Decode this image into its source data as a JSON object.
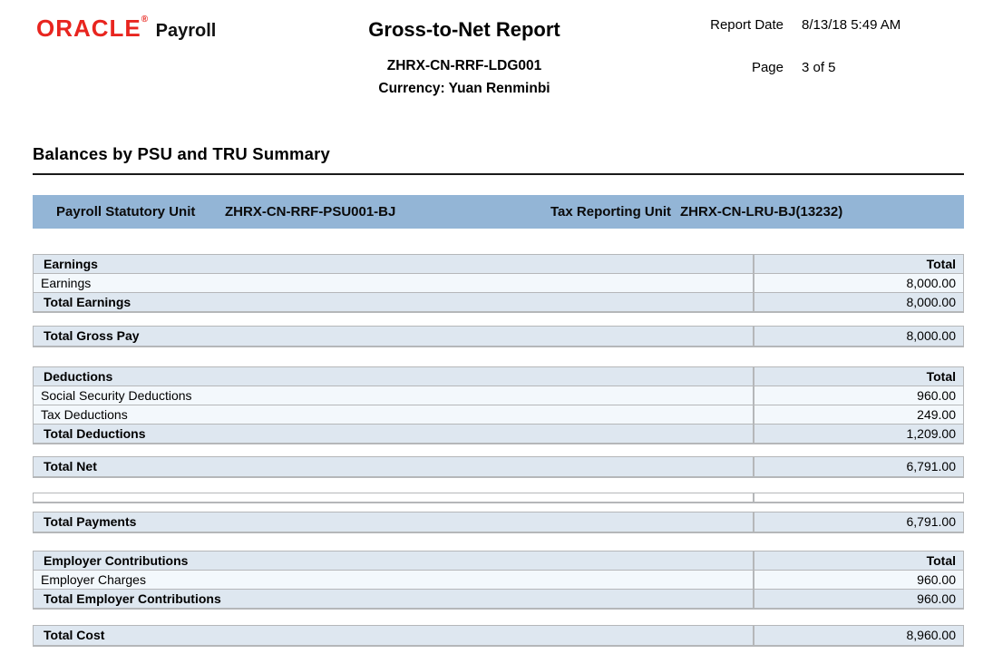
{
  "header": {
    "logo_oracle": "ORACLE",
    "logo_trademark": "®",
    "logo_product": "Payroll",
    "title": "Gross-to-Net Report",
    "subtitle_ledger": "ZHRX-CN-RRF-LDG001",
    "subtitle_currency": "Currency: Yuan Renminbi",
    "report_date_label": "Report Date",
    "report_date_value": "8/13/18 5:49 AM",
    "page_label": "Page",
    "page_value": "3 of 5"
  },
  "section_heading": "Balances by PSU and TRU Summary",
  "unit_bar": {
    "psu_label": "Payroll Statutory Unit",
    "psu_value": "ZHRX-CN-RRF-PSU001-BJ",
    "tru_label": "Tax Reporting Unit",
    "tru_value": "ZHRX-CN-LRU-BJ(13232)"
  },
  "tables": {
    "earnings": {
      "rows": [
        {
          "type": "header",
          "label": "Earnings",
          "value": "Total"
        },
        {
          "type": "data",
          "label": "Earnings",
          "value": "8,000.00"
        },
        {
          "type": "total",
          "label": "Total Earnings",
          "value": "8,000.00"
        }
      ]
    },
    "total_gross_pay": {
      "rows": [
        {
          "type": "single",
          "label": "Total Gross Pay",
          "value": "8,000.00"
        }
      ]
    },
    "deductions": {
      "rows": [
        {
          "type": "header",
          "label": "Deductions",
          "value": "Total"
        },
        {
          "type": "data",
          "label": "Social Security Deductions",
          "value": "960.00"
        },
        {
          "type": "data",
          "label": "Tax Deductions",
          "value": "249.00"
        },
        {
          "type": "total",
          "label": "Total Deductions",
          "value": "1,209.00"
        }
      ]
    },
    "total_net": {
      "rows": [
        {
          "type": "single",
          "label": "Total Net",
          "value": "6,791.00"
        }
      ]
    },
    "total_payments": {
      "rows": [
        {
          "type": "single",
          "label": "Total Payments",
          "value": "6,791.00"
        }
      ]
    },
    "employer_contributions": {
      "rows": [
        {
          "type": "header",
          "label": "Employer Contributions",
          "value": "Total"
        },
        {
          "type": "data",
          "label": "Employer Charges",
          "value": "960.00"
        },
        {
          "type": "total",
          "label": "Total Employer Contributions",
          "value": "960.00"
        }
      ]
    },
    "total_cost": {
      "rows": [
        {
          "type": "single",
          "label": "Total Cost",
          "value": "8,960.00"
        }
      ]
    }
  },
  "colors": {
    "oracle_red": "#e8251f",
    "unit_bar_blue": "#93b5d6",
    "row_header_bg": "#dee7f0",
    "row_data_bg": "#f3f8fc",
    "table_border": "#b5b7b9"
  }
}
